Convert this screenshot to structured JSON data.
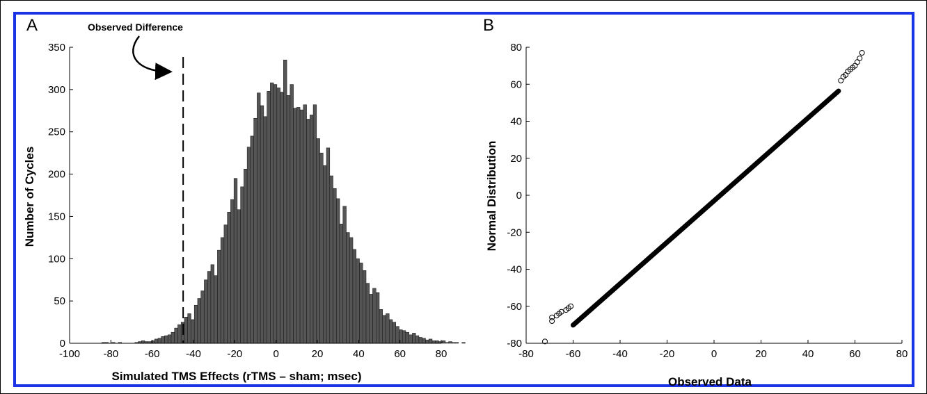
{
  "colors": {
    "frame": "#1a33e6",
    "bars": "#555555",
    "axis": "#000000"
  },
  "chart_data": [
    {
      "type": "bar",
      "panel_label": "A",
      "xlabel": "Simulated TMS Effects (rTMS – sham; msec)",
      "ylabel": "Number of Cycles",
      "xlim": [
        -100,
        80
      ],
      "ylim": [
        0,
        350
      ],
      "xticks": [
        -100,
        -80,
        -60,
        -40,
        -20,
        0,
        20,
        40,
        60,
        80
      ],
      "yticks": [
        0,
        50,
        100,
        150,
        200,
        250,
        300,
        350
      ],
      "annotation": {
        "text": "Observed Difference",
        "x": -45
      },
      "bin_width": 1.6,
      "bin_start": -86,
      "values": [
        0,
        1,
        1,
        0,
        1,
        0,
        1,
        0,
        0,
        0,
        0,
        1,
        2,
        3,
        2,
        2,
        3,
        5,
        6,
        8,
        9,
        10,
        13,
        18,
        22,
        25,
        31,
        35,
        28,
        45,
        53,
        62,
        75,
        85,
        93,
        80,
        110,
        125,
        140,
        155,
        170,
        195,
        158,
        185,
        206,
        232,
        245,
        266,
        296,
        281,
        268,
        298,
        308,
        306,
        302,
        297,
        335,
        293,
        306,
        278,
        279,
        276,
        282,
        265,
        270,
        282,
        242,
        225,
        210,
        231,
        198,
        183,
        171,
        141,
        162,
        131,
        125,
        111,
        100,
        95,
        86,
        71,
        58,
        65,
        60,
        40,
        33,
        35,
        28,
        25,
        20,
        16,
        15,
        13,
        10,
        12,
        9,
        7,
        6,
        4,
        5,
        3,
        3,
        2,
        3,
        1,
        2,
        1,
        1,
        0,
        1
      ]
    },
    {
      "type": "scatter",
      "panel_label": "B",
      "xlabel": "Observed Data",
      "ylabel": "Normal Distribution",
      "xlim": [
        -80,
        80
      ],
      "ylim": [
        -80,
        80
      ],
      "xticks": [
        -80,
        -60,
        -40,
        -20,
        0,
        20,
        40,
        60,
        80
      ],
      "yticks": [
        -80,
        -60,
        -40,
        -20,
        0,
        20,
        40,
        60,
        80
      ],
      "sparse_points": [
        [
          -72,
          -79
        ],
        [
          -69,
          -68
        ],
        [
          -69,
          -66
        ],
        [
          -67,
          -65
        ],
        [
          -66,
          -64
        ],
        [
          -65,
          -63
        ],
        [
          -63,
          -62
        ],
        [
          -62,
          -61
        ],
        [
          -61,
          -60
        ],
        [
          54,
          62
        ],
        [
          55,
          64
        ],
        [
          56,
          65
        ],
        [
          57,
          67
        ],
        [
          58,
          68
        ],
        [
          59,
          69
        ],
        [
          60,
          70
        ],
        [
          61,
          72
        ],
        [
          62,
          74
        ],
        [
          63,
          77
        ]
      ],
      "dense_segment": {
        "x_from": -60,
        "x_to": 53,
        "slope": 1.12,
        "intercept": -3
      }
    }
  ]
}
